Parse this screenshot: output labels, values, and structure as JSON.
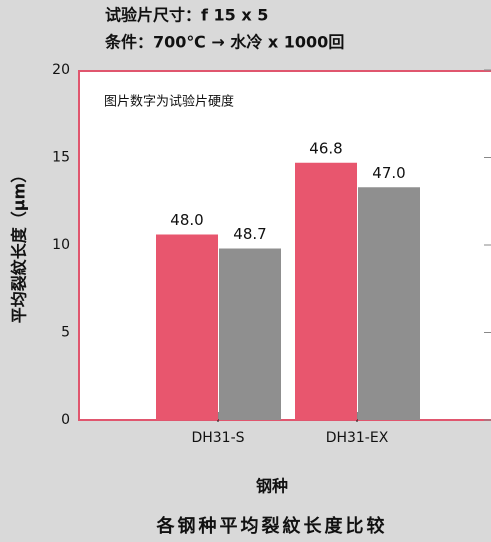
{
  "chart_data": {
    "type": "bar",
    "title": "各钢种平均裂紋长度比较",
    "header_lines": [
      "试验片尺寸：f 15 x 5",
      "条件：700℃ → 水冷 x 1000回"
    ],
    "annotation": "图片数字为试验片硬度",
    "x_label": "钢种",
    "y_label": "平均裂紋长度（μm）",
    "categories": [
      "DH31-S",
      "DH31-EX"
    ],
    "series": [
      {
        "color": "#e8566e",
        "values": [
          10.6,
          14.7
        ],
        "hardness_labels": [
          "48.0",
          "46.8"
        ]
      },
      {
        "color": "#8f8f8f",
        "values": [
          9.8,
          13.3
        ],
        "hardness_labels": [
          "48.7",
          "47.0"
        ]
      }
    ],
    "ylim": [
      0,
      20
    ],
    "yticks": [
      0,
      5,
      10,
      15,
      20
    ],
    "grid": false
  }
}
